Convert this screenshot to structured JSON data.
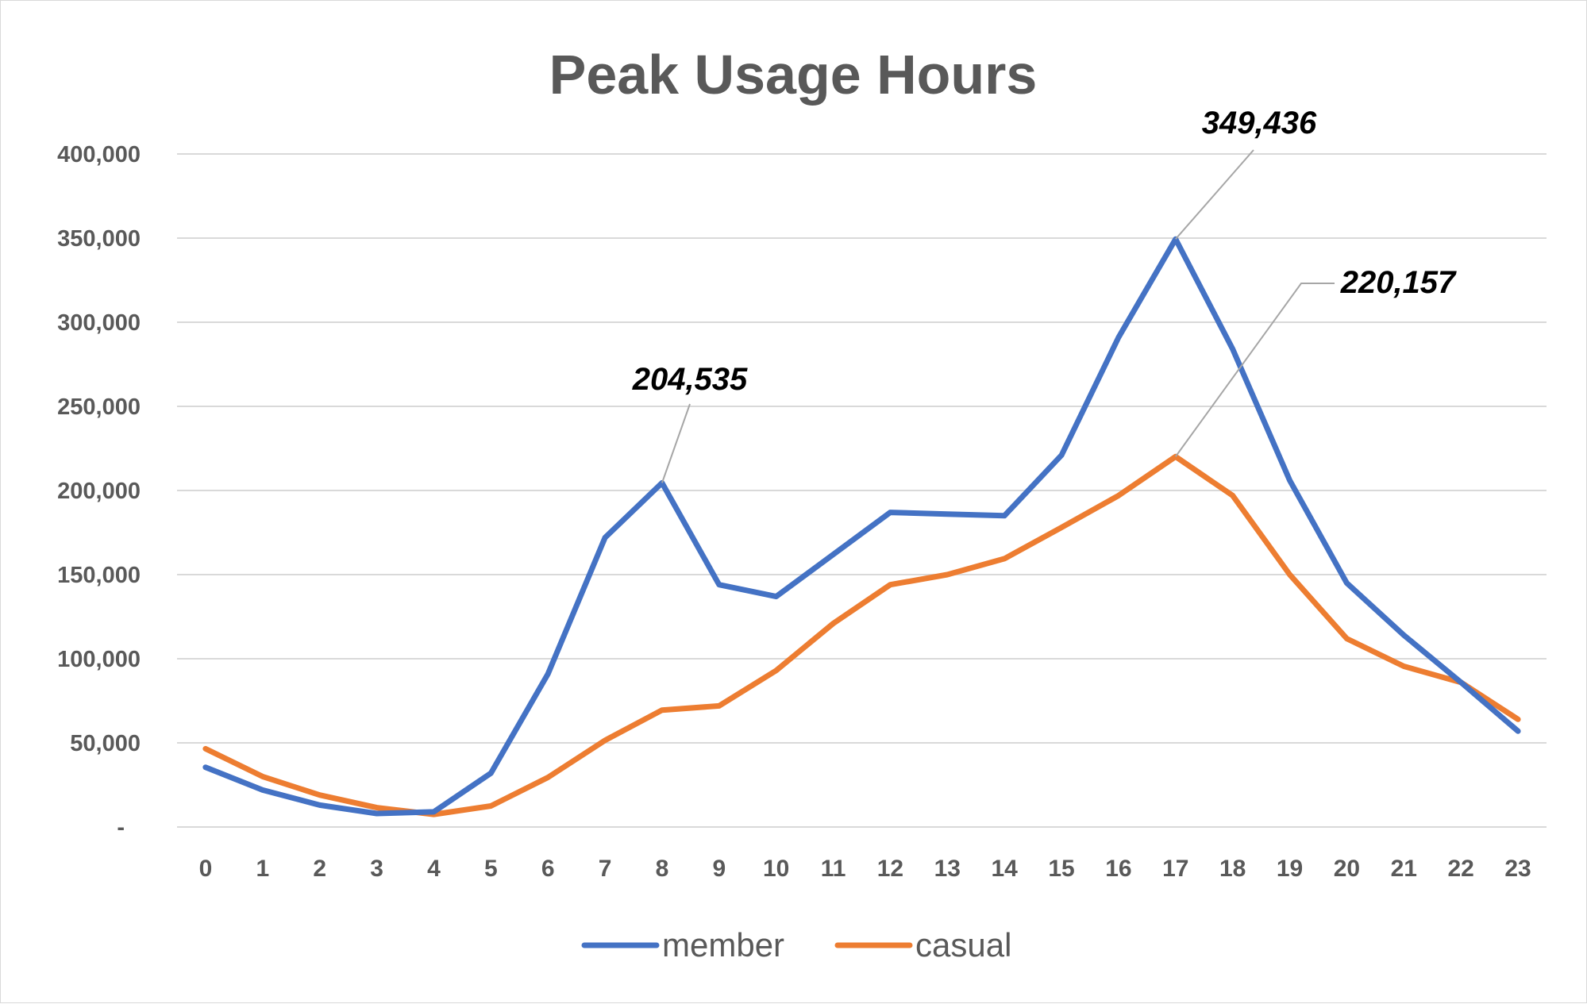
{
  "chart_data": {
    "type": "line",
    "title": "Peak Usage Hours",
    "xlabel": "",
    "ylabel": "",
    "categories": [
      "0",
      "1",
      "2",
      "3",
      "4",
      "5",
      "6",
      "7",
      "8",
      "9",
      "10",
      "11",
      "12",
      "13",
      "14",
      "15",
      "16",
      "17",
      "18",
      "19",
      "20",
      "21",
      "22",
      "23"
    ],
    "series": [
      {
        "name": "member",
        "color": "#4472C4",
        "values": [
          35500,
          22000,
          13000,
          8000,
          9000,
          32000,
          91000,
          172000,
          204535,
          144000,
          137000,
          162000,
          187000,
          186000,
          185000,
          221000,
          291000,
          349436,
          284000,
          206000,
          145000,
          114000,
          86000,
          57000
        ]
      },
      {
        "name": "casual",
        "color": "#ED7D31",
        "values": [
          46500,
          30000,
          19000,
          11500,
          7500,
          12500,
          29500,
          51500,
          69500,
          72000,
          93000,
          121000,
          144000,
          150000,
          159500,
          178000,
          197000,
          220157,
          197000,
          150000,
          112000,
          95500,
          86000,
          64000
        ]
      }
    ],
    "ylim": [
      0,
      400000
    ],
    "yticks": [
      0,
      50000,
      100000,
      150000,
      200000,
      250000,
      300000,
      350000,
      400000
    ],
    "ytick_labels": [
      "-",
      "50,000",
      "100,000",
      "150,000",
      "200,000",
      "250,000",
      "300,000",
      "350,000",
      "400,000"
    ],
    "grid": true,
    "legend_position": "bottom",
    "annotations": [
      {
        "series": "member",
        "category": "8",
        "text": "204,535"
      },
      {
        "series": "member",
        "category": "17",
        "text": "349,436"
      },
      {
        "series": "casual",
        "category": "17",
        "text": "220,157"
      }
    ]
  }
}
